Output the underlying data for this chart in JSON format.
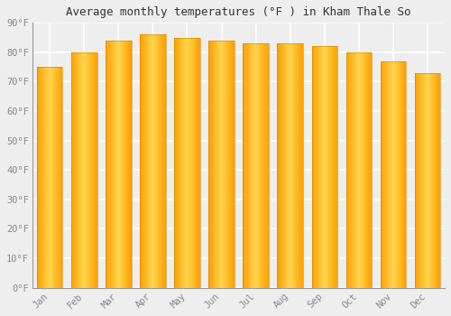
{
  "title": "Average monthly temperatures (°F ) in Kham Thale So",
  "months": [
    "Jan",
    "Feb",
    "Mar",
    "Apr",
    "May",
    "Jun",
    "Jul",
    "Aug",
    "Sep",
    "Oct",
    "Nov",
    "Dec"
  ],
  "values": [
    75,
    80,
    84,
    86,
    85,
    84,
    83,
    83,
    82,
    80,
    77,
    73
  ],
  "bar_color_center": "#FFD54F",
  "bar_color_edge": "#FFA000",
  "ylim": [
    0,
    90
  ],
  "yticks": [
    0,
    10,
    20,
    30,
    40,
    50,
    60,
    70,
    80,
    90
  ],
  "ytick_labels": [
    "0°F",
    "10°F",
    "20°F",
    "30°F",
    "40°F",
    "50°F",
    "60°F",
    "70°F",
    "80°F",
    "90°F"
  ],
  "background_color": "#eeeeee",
  "grid_color": "#ffffff",
  "title_fontsize": 9,
  "tick_fontsize": 7.5,
  "font_family": "monospace",
  "bar_width": 0.75
}
